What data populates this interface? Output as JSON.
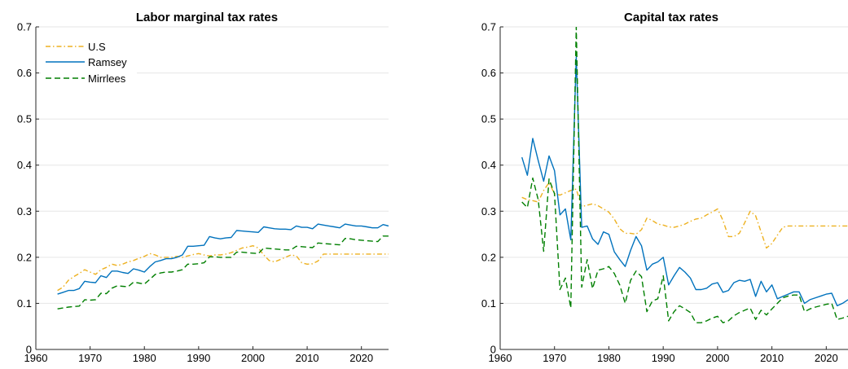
{
  "chart_data": [
    {
      "type": "line",
      "title": "Labor marginal tax rates",
      "xlabel": "",
      "ylabel": "",
      "xlim": [
        1960,
        2025
      ],
      "ylim": [
        0,
        0.7
      ],
      "xticks": [
        "1960",
        "1970",
        "1980",
        "1990",
        "2000",
        "2010",
        "2020"
      ],
      "yticks": [
        "0",
        "0.1",
        "0.2",
        "0.3",
        "0.4",
        "0.5",
        "0.6",
        "0.7"
      ],
      "grid": "horizontal",
      "legend": "top-left",
      "x": [
        1964,
        1965,
        1966,
        1967,
        1968,
        1969,
        1970,
        1971,
        1972,
        1973,
        1974,
        1975,
        1976,
        1977,
        1978,
        1979,
        1980,
        1981,
        1982,
        1983,
        1984,
        1985,
        1986,
        1987,
        1988,
        1989,
        1990,
        1991,
        1992,
        1993,
        1994,
        1995,
        1996,
        1997,
        1998,
        1999,
        2000,
        2001,
        2002,
        2003,
        2004,
        2005,
        2006,
        2007,
        2008,
        2009,
        2010,
        2011,
        2012,
        2013,
        2014,
        2015,
        2016,
        2017,
        2018,
        2019,
        2020,
        2021,
        2022,
        2023,
        2024,
        2025
      ],
      "series": [
        {
          "name": "U.S",
          "color": "#EDB120",
          "style": "dashdot",
          "values": [
            0.128,
            0.135,
            0.15,
            0.158,
            0.165,
            0.173,
            0.168,
            0.163,
            0.173,
            0.178,
            0.185,
            0.182,
            0.185,
            0.19,
            0.193,
            0.198,
            0.202,
            0.208,
            0.205,
            0.2,
            0.2,
            0.2,
            0.202,
            0.2,
            0.203,
            0.206,
            0.208,
            0.205,
            0.203,
            0.205,
            0.205,
            0.207,
            0.21,
            0.215,
            0.22,
            0.222,
            0.225,
            0.22,
            0.205,
            0.193,
            0.19,
            0.195,
            0.2,
            0.205,
            0.203,
            0.188,
            0.185,
            0.186,
            0.192,
            0.207,
            0.207,
            0.207,
            0.207,
            0.207,
            0.207,
            0.207,
            0.207,
            0.207,
            0.207,
            0.207,
            0.207,
            0.207
          ]
        },
        {
          "name": "Ramsey",
          "color": "#0072BD",
          "style": "solid",
          "values": [
            0.12,
            0.124,
            0.128,
            0.128,
            0.132,
            0.148,
            0.146,
            0.145,
            0.16,
            0.156,
            0.17,
            0.17,
            0.167,
            0.165,
            0.175,
            0.172,
            0.168,
            0.18,
            0.19,
            0.193,
            0.197,
            0.197,
            0.2,
            0.205,
            0.224,
            0.224,
            0.225,
            0.226,
            0.245,
            0.242,
            0.24,
            0.242,
            0.243,
            0.258,
            0.257,
            0.256,
            0.255,
            0.254,
            0.266,
            0.264,
            0.262,
            0.261,
            0.261,
            0.26,
            0.268,
            0.265,
            0.265,
            0.262,
            0.272,
            0.27,
            0.268,
            0.266,
            0.264,
            0.272,
            0.27,
            0.268,
            0.268,
            0.266,
            0.264,
            0.264,
            0.271,
            0.268
          ]
        },
        {
          "name": "Mirrlees",
          "color": "#007F00",
          "style": "dashed",
          "values": [
            0.088,
            0.09,
            0.092,
            0.093,
            0.094,
            0.108,
            0.107,
            0.108,
            0.122,
            0.121,
            0.133,
            0.138,
            0.137,
            0.136,
            0.146,
            0.144,
            0.142,
            0.152,
            0.163,
            0.166,
            0.168,
            0.168,
            0.17,
            0.173,
            0.185,
            0.185,
            0.186,
            0.188,
            0.201,
            0.201,
            0.2,
            0.2,
            0.2,
            0.211,
            0.211,
            0.21,
            0.209,
            0.208,
            0.22,
            0.219,
            0.218,
            0.217,
            0.216,
            0.216,
            0.224,
            0.223,
            0.222,
            0.221,
            0.231,
            0.23,
            0.229,
            0.228,
            0.227,
            0.241,
            0.24,
            0.238,
            0.237,
            0.236,
            0.235,
            0.234,
            0.246,
            0.246
          ]
        }
      ]
    },
    {
      "type": "line",
      "title": "Capital tax rates",
      "xlabel": "",
      "ylabel": "",
      "xlim": [
        1960,
        2024
      ],
      "ylim": [
        0,
        0.7
      ],
      "xticks": [
        "1960",
        "1970",
        "1980",
        "1990",
        "2000",
        "2010",
        "2020"
      ],
      "yticks": [
        "0",
        "0.1",
        "0.2",
        "0.3",
        "0.4",
        "0.5",
        "0.6",
        "0.7"
      ],
      "grid": "horizontal",
      "legend": "none",
      "x": [
        1964,
        1965,
        1966,
        1967,
        1968,
        1969,
        1970,
        1971,
        1972,
        1973,
        1974,
        1975,
        1976,
        1977,
        1978,
        1979,
        1980,
        1981,
        1982,
        1983,
        1984,
        1985,
        1986,
        1987,
        1988,
        1989,
        1990,
        1991,
        1992,
        1993,
        1994,
        1995,
        1996,
        1997,
        1998,
        1999,
        2000,
        2001,
        2002,
        2003,
        2004,
        2005,
        2006,
        2007,
        2008,
        2009,
        2010,
        2011,
        2012,
        2013,
        2014,
        2015,
        2016,
        2017,
        2018,
        2019,
        2020,
        2021,
        2022,
        2023,
        2024
      ],
      "series": [
        {
          "name": "U.S",
          "color": "#EDB120",
          "style": "dashdot",
          "values": [
            0.33,
            0.325,
            0.323,
            0.32,
            0.345,
            0.362,
            0.338,
            0.335,
            0.34,
            0.345,
            0.348,
            0.31,
            0.313,
            0.316,
            0.312,
            0.305,
            0.298,
            0.283,
            0.262,
            0.252,
            0.252,
            0.25,
            0.26,
            0.285,
            0.28,
            0.272,
            0.27,
            0.266,
            0.265,
            0.268,
            0.272,
            0.278,
            0.283,
            0.285,
            0.292,
            0.298,
            0.305,
            0.28,
            0.245,
            0.245,
            0.252,
            0.275,
            0.3,
            0.29,
            0.255,
            0.22,
            0.23,
            0.248,
            0.265,
            0.268,
            0.268,
            0.268,
            0.268,
            0.268,
            0.268,
            0.268,
            0.268,
            0.268,
            0.268,
            0.268,
            0.268
          ]
        },
        {
          "name": "Ramsey",
          "color": "#0072BD",
          "style": "solid",
          "values": [
            0.417,
            0.378,
            0.458,
            0.41,
            0.365,
            0.42,
            0.388,
            0.292,
            0.305,
            0.238,
            0.635,
            0.265,
            0.268,
            0.24,
            0.228,
            0.255,
            0.25,
            0.212,
            0.195,
            0.18,
            0.215,
            0.245,
            0.225,
            0.172,
            0.185,
            0.19,
            0.2,
            0.14,
            0.16,
            0.178,
            0.168,
            0.155,
            0.13,
            0.13,
            0.133,
            0.142,
            0.145,
            0.124,
            0.128,
            0.145,
            0.15,
            0.148,
            0.152,
            0.115,
            0.148,
            0.125,
            0.14,
            0.11,
            0.115,
            0.12,
            0.125,
            0.125,
            0.1,
            0.108,
            0.112,
            0.116,
            0.12,
            0.122,
            0.095,
            0.1,
            0.108
          ]
        },
        {
          "name": "Mirrlees",
          "color": "#007F00",
          "style": "dashed",
          "values": [
            0.32,
            0.308,
            0.372,
            0.325,
            0.213,
            0.37,
            0.338,
            0.13,
            0.155,
            0.09,
            0.7,
            0.135,
            0.195,
            0.132,
            0.172,
            0.175,
            0.18,
            0.165,
            0.14,
            0.1,
            0.15,
            0.17,
            0.158,
            0.082,
            0.105,
            0.11,
            0.16,
            0.062,
            0.082,
            0.095,
            0.088,
            0.08,
            0.058,
            0.058,
            0.062,
            0.068,
            0.072,
            0.058,
            0.062,
            0.073,
            0.08,
            0.085,
            0.09,
            0.065,
            0.085,
            0.075,
            0.088,
            0.1,
            0.112,
            0.116,
            0.118,
            0.118,
            0.082,
            0.088,
            0.092,
            0.095,
            0.098,
            0.1,
            0.065,
            0.068,
            0.072
          ]
        }
      ]
    }
  ]
}
